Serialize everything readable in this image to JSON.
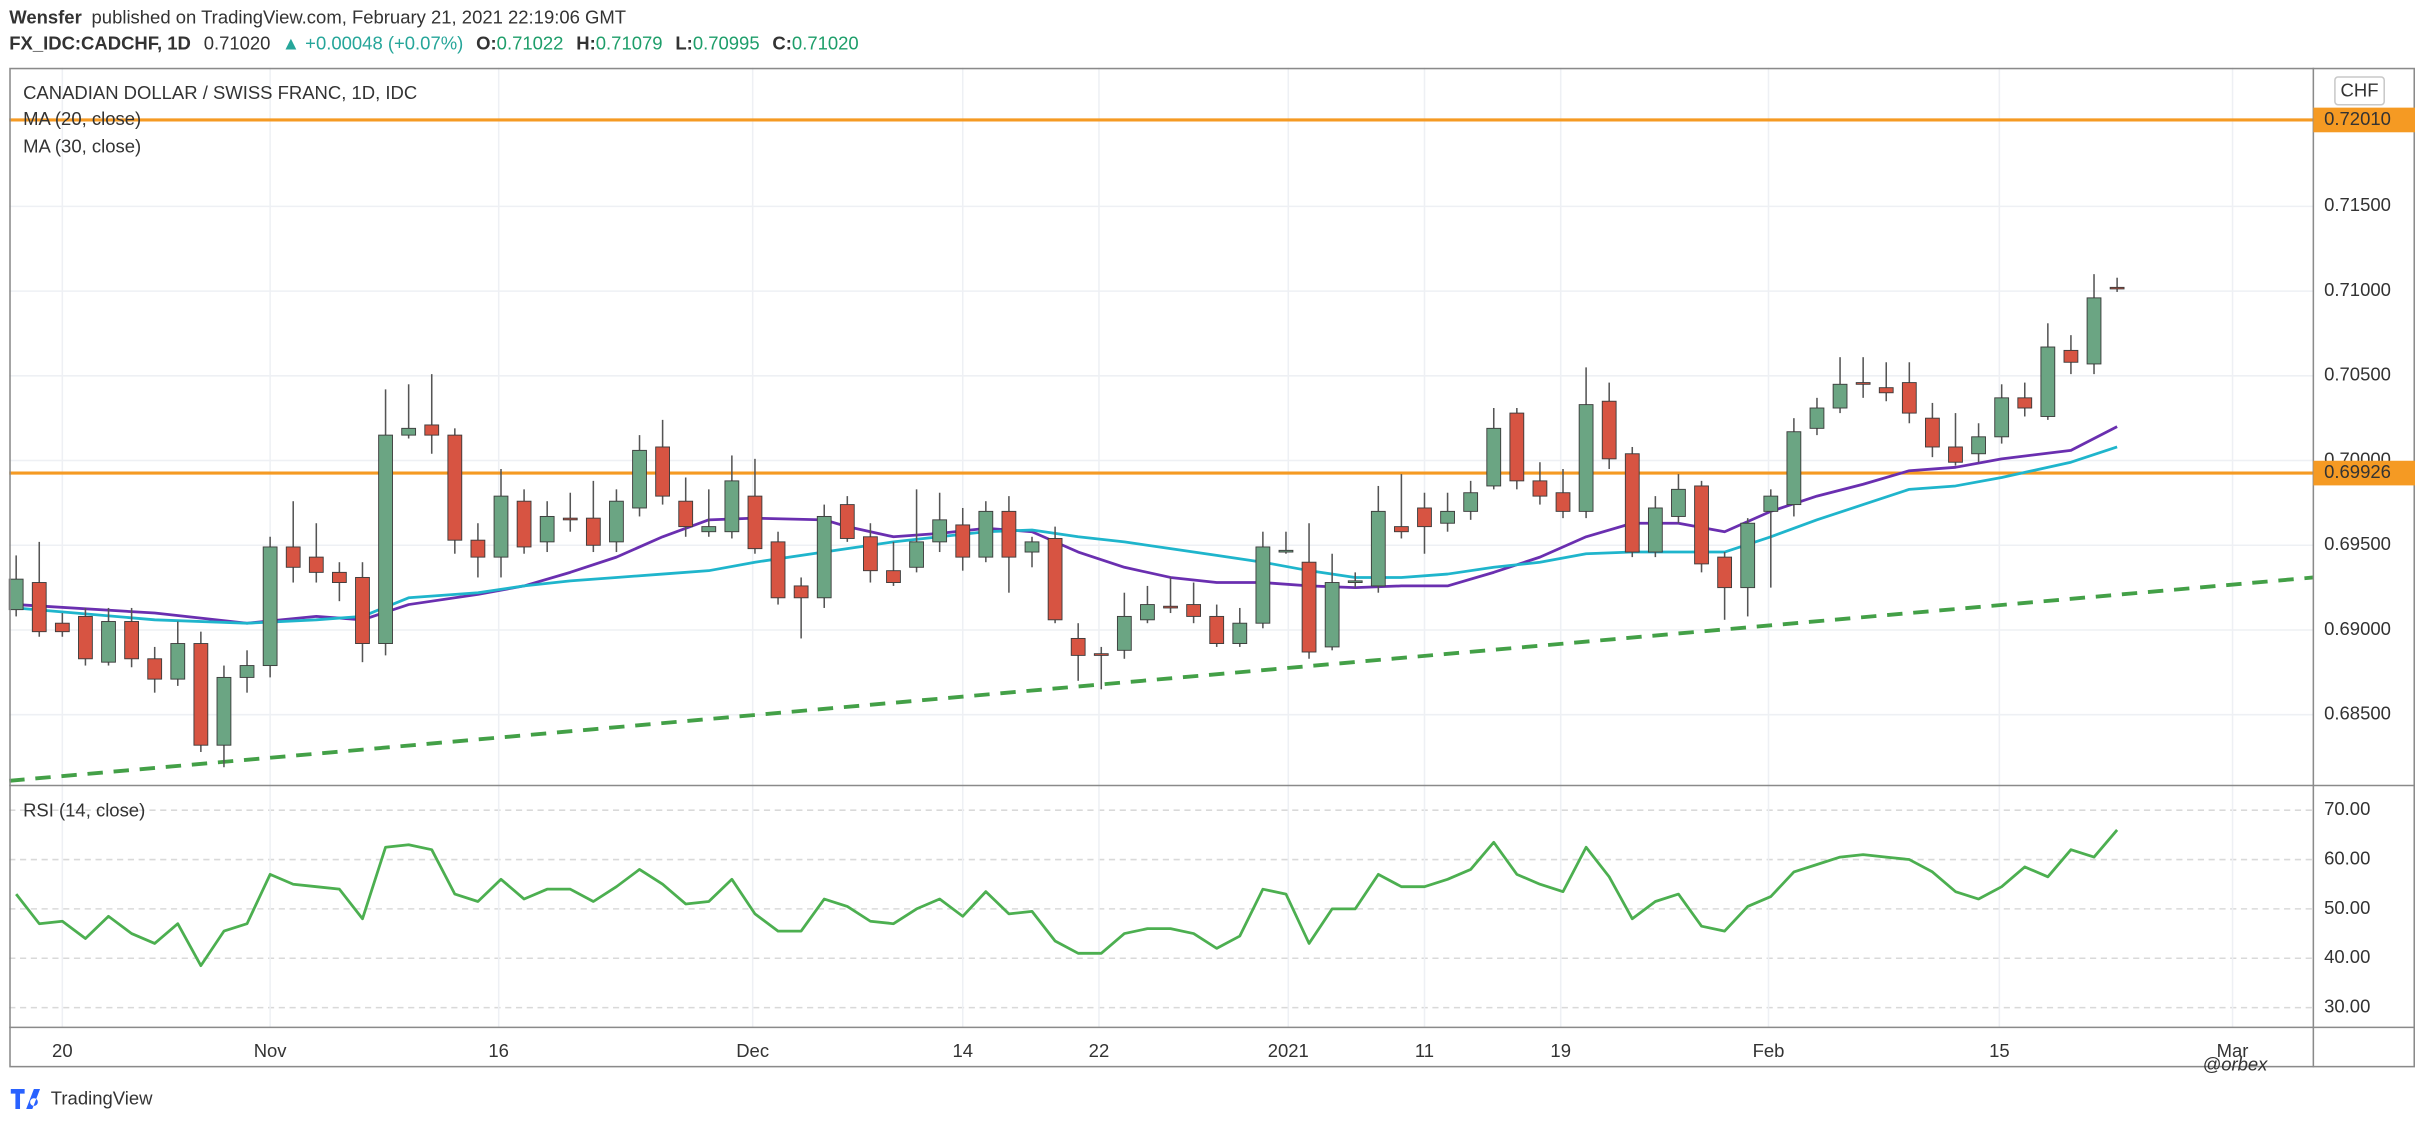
{
  "header": {
    "author": "Wensfer",
    "published": "published on TradingView.com, February 21, 2021 22:19:06 GMT",
    "symbol": "FX_IDC:CADCHF, 1D",
    "last": "0.71020",
    "change": "▲ +0.00048 (+0.07%)",
    "ohlc": [
      {
        "key": "O:",
        "value": "0.71022"
      },
      {
        "key": "H:",
        "value": "0.71079"
      },
      {
        "key": "L:",
        "value": "0.70995"
      },
      {
        "key": "C:",
        "value": "0.71020"
      }
    ]
  },
  "chart_data": [
    {
      "type": "candlestick",
      "title": "CANADIAN DOLLAR / SWISS FRANC, 1D, IDC",
      "currency": "CHF",
      "up_color": "#6ba583",
      "down_color": "#d75442",
      "grid": true,
      "xlim": [
        -0.3,
        99.5
      ],
      "ylim": [
        0.68082,
        0.72318
      ],
      "yticks": [
        {
          "value": 0.685,
          "label": "0.68500"
        },
        {
          "value": 0.69,
          "label": "0.69000"
        },
        {
          "value": 0.695,
          "label": "0.69500"
        },
        {
          "value": 0.7,
          "label": "0.70000"
        },
        {
          "value": 0.705,
          "label": "0.70500"
        },
        {
          "value": 0.71,
          "label": "0.71000"
        },
        {
          "value": 0.715,
          "label": "0.71500"
        }
      ],
      "open": [
        0.6912,
        0.6928,
        0.6904,
        0.6908,
        0.6881,
        0.6905,
        0.6883,
        0.6871,
        0.6892,
        0.6832,
        0.6872,
        0.6879,
        0.6949,
        0.6943,
        0.6934,
        0.6931,
        0.6892,
        0.7015,
        0.7021,
        0.7015,
        0.6953,
        0.6943,
        0.6976,
        0.6952,
        0.6966,
        0.6966,
        0.6952,
        0.6972,
        0.7008,
        0.6976,
        0.6958,
        0.6958,
        0.6979,
        0.6952,
        0.6926,
        0.6919,
        0.6974,
        0.6955,
        0.6935,
        0.6937,
        0.6952,
        0.6962,
        0.6943,
        0.697,
        0.6946,
        0.6954,
        0.6895,
        0.6886,
        0.6888,
        0.6906,
        0.6914,
        0.6915,
        0.6908,
        0.6892,
        0.6904,
        0.6946,
        0.694,
        0.689,
        0.6928,
        0.6926,
        0.6961,
        0.6972,
        0.6963,
        0.697,
        0.6985,
        0.7028,
        0.6988,
        0.6981,
        0.697,
        0.7035,
        0.7004,
        0.6946,
        0.6967,
        0.6985,
        0.6943,
        0.6925,
        0.697,
        0.6974,
        0.7019,
        0.7031,
        0.7046,
        0.7043,
        0.7046,
        0.7025,
        0.7008,
        0.7004,
        0.7014,
        0.7037,
        0.7026,
        0.7065,
        0.7057,
        0.71022
      ],
      "high": [
        0.6944,
        0.6952,
        0.691,
        0.6913,
        0.6913,
        0.6913,
        0.689,
        0.6905,
        0.6899,
        0.6879,
        0.6888,
        0.6955,
        0.6976,
        0.6963,
        0.694,
        0.694,
        0.7042,
        0.7045,
        0.7051,
        0.7019,
        0.6963,
        0.6995,
        0.6983,
        0.6976,
        0.6981,
        0.6988,
        0.6983,
        0.7015,
        0.7024,
        0.699,
        0.6983,
        0.7003,
        0.7001,
        0.6958,
        0.6931,
        0.6974,
        0.6979,
        0.6963,
        0.6952,
        0.6983,
        0.6981,
        0.6972,
        0.6976,
        0.6979,
        0.6955,
        0.6961,
        0.6904,
        0.689,
        0.6922,
        0.6926,
        0.6931,
        0.6928,
        0.6915,
        0.6913,
        0.6958,
        0.6958,
        0.6963,
        0.6945,
        0.6934,
        0.6985,
        0.6992,
        0.6981,
        0.6981,
        0.6988,
        0.7031,
        0.7031,
        0.6999,
        0.6995,
        0.7055,
        0.7046,
        0.7008,
        0.6979,
        0.6992,
        0.6988,
        0.6946,
        0.6966,
        0.6983,
        0.7025,
        0.7037,
        0.7061,
        0.7061,
        0.7058,
        0.7058,
        0.7034,
        0.7028,
        0.7022,
        0.7045,
        0.7046,
        0.7081,
        0.7074,
        0.711,
        0.71079
      ],
      "low": [
        0.6908,
        0.6896,
        0.6896,
        0.6879,
        0.6879,
        0.6878,
        0.6863,
        0.6867,
        0.6828,
        0.6819,
        0.6863,
        0.6872,
        0.6928,
        0.6928,
        0.6917,
        0.6881,
        0.6885,
        0.7013,
        0.7004,
        0.6945,
        0.6931,
        0.6931,
        0.6945,
        0.6946,
        0.6958,
        0.6946,
        0.6946,
        0.6967,
        0.6974,
        0.6955,
        0.6955,
        0.6954,
        0.6945,
        0.6915,
        0.6895,
        0.6913,
        0.6952,
        0.6928,
        0.6926,
        0.6934,
        0.6946,
        0.6935,
        0.694,
        0.6922,
        0.6937,
        0.6904,
        0.687,
        0.6865,
        0.6883,
        0.6904,
        0.691,
        0.6904,
        0.689,
        0.689,
        0.6901,
        0.6945,
        0.6883,
        0.6888,
        0.6925,
        0.6922,
        0.6954,
        0.6945,
        0.6958,
        0.6965,
        0.6983,
        0.6983,
        0.6974,
        0.6966,
        0.6966,
        0.6995,
        0.6943,
        0.6943,
        0.6963,
        0.6934,
        0.6906,
        0.6908,
        0.6925,
        0.6967,
        0.7015,
        0.7028,
        0.7037,
        0.7035,
        0.7022,
        0.7002,
        0.6997,
        0.6999,
        0.701,
        0.7026,
        0.7024,
        0.7051,
        0.7051,
        0.70995
      ],
      "close": [
        0.693,
        0.6899,
        0.6899,
        0.6883,
        0.6905,
        0.6883,
        0.6871,
        0.6892,
        0.6832,
        0.6872,
        0.6879,
        0.6949,
        0.6937,
        0.6934,
        0.6928,
        0.6892,
        0.7015,
        0.7019,
        0.7015,
        0.6953,
        0.6943,
        0.6979,
        0.6949,
        0.6967,
        0.6965,
        0.695,
        0.6976,
        0.7006,
        0.6979,
        0.6961,
        0.6961,
        0.6988,
        0.6948,
        0.6919,
        0.6919,
        0.6967,
        0.6954,
        0.6935,
        0.6928,
        0.6952,
        0.6965,
        0.6943,
        0.697,
        0.6943,
        0.6952,
        0.6906,
        0.6885,
        0.6885,
        0.6908,
        0.6915,
        0.6913,
        0.6908,
        0.6892,
        0.6904,
        0.6949,
        0.6947,
        0.6887,
        0.6928,
        0.6929,
        0.697,
        0.6958,
        0.6961,
        0.697,
        0.6981,
        0.7019,
        0.6988,
        0.6979,
        0.697,
        0.7033,
        0.7001,
        0.6946,
        0.6972,
        0.6983,
        0.6939,
        0.6925,
        0.6963,
        0.6979,
        0.7017,
        0.7031,
        0.7045,
        0.7045,
        0.704,
        0.7028,
        0.7008,
        0.6999,
        0.7014,
        0.7037,
        0.7031,
        0.7067,
        0.7058,
        0.7096,
        0.7102
      ],
      "series": [
        {
          "name": "MA (20, close)",
          "color": "#6a2fb0",
          "x": [
            0,
            6,
            10,
            13,
            15,
            17,
            20,
            22,
            24,
            26,
            28,
            30,
            32,
            35,
            36,
            38,
            40,
            42,
            44,
            46,
            48,
            50,
            52,
            54,
            56,
            58,
            60,
            62,
            64,
            66,
            68,
            70,
            72,
            74,
            76,
            78,
            80,
            82,
            84,
            86,
            89,
            91
          ],
          "values": [
            0.6915,
            0.691,
            0.6904,
            0.6908,
            0.6906,
            0.6915,
            0.6921,
            0.6926,
            0.6934,
            0.6943,
            0.6955,
            0.6965,
            0.6966,
            0.6965,
            0.6961,
            0.6955,
            0.6957,
            0.696,
            0.6958,
            0.6946,
            0.6937,
            0.6931,
            0.6928,
            0.6928,
            0.6926,
            0.6925,
            0.6926,
            0.6926,
            0.6934,
            0.6943,
            0.6955,
            0.6963,
            0.6963,
            0.6958,
            0.697,
            0.6979,
            0.6986,
            0.6994,
            0.6996,
            0.7001,
            0.7006,
            0.702
          ]
        },
        {
          "name": "MA (30, close)",
          "color": "#1fb5cc",
          "x": [
            0,
            6,
            10,
            13,
            15,
            17,
            20,
            22,
            24,
            26,
            28,
            30,
            32,
            35,
            36,
            38,
            40,
            42,
            44,
            46,
            48,
            50,
            52,
            54,
            56,
            58,
            60,
            62,
            64,
            66,
            68,
            70,
            72,
            74,
            76,
            78,
            80,
            82,
            84,
            86,
            89,
            91
          ],
          "values": [
            0.6913,
            0.6906,
            0.6904,
            0.6906,
            0.6908,
            0.6919,
            0.6922,
            0.6926,
            0.6929,
            0.6931,
            0.6933,
            0.6935,
            0.694,
            0.6946,
            0.6948,
            0.6952,
            0.6955,
            0.6958,
            0.6959,
            0.6955,
            0.6952,
            0.6948,
            0.6944,
            0.694,
            0.6935,
            0.6931,
            0.6931,
            0.6933,
            0.6937,
            0.694,
            0.6945,
            0.6946,
            0.6946,
            0.6946,
            0.6955,
            0.6965,
            0.6974,
            0.6983,
            0.6985,
            0.699,
            0.6999,
            0.7008
          ]
        }
      ],
      "trendlines": [
        {
          "color": "#43a047",
          "style": "dashed",
          "x": [
            -0.3,
            99.5
          ],
          "values": [
            0.6811,
            0.6931
          ]
        }
      ],
      "hlines": [
        {
          "value": 0.7201,
          "label": "0.72010",
          "color": "#f59a23"
        },
        {
          "value": 0.69926,
          "label": "0.69926",
          "color": "#f59a23"
        }
      ]
    },
    {
      "type": "line",
      "title": "RSI (14, close)",
      "color": "#4caf50",
      "grid": true,
      "xlim": [
        -0.3,
        99.5
      ],
      "ylim": [
        26,
        75
      ],
      "yticks": [
        {
          "value": 30,
          "label": "30.00"
        },
        {
          "value": 40,
          "label": "40.00"
        },
        {
          "value": 50,
          "label": "50.00"
        },
        {
          "value": 60,
          "label": "60.00"
        },
        {
          "value": 70,
          "label": "70.00"
        }
      ],
      "xticks": [
        {
          "value": 2,
          "label": "20"
        },
        {
          "value": 11,
          "label": "Nov"
        },
        {
          "value": 20.9,
          "label": "16"
        },
        {
          "value": 31.9,
          "label": "Dec"
        },
        {
          "value": 41,
          "label": "14"
        },
        {
          "value": 46.9,
          "label": "22"
        },
        {
          "value": 55.1,
          "label": "2021"
        },
        {
          "value": 61,
          "label": "11"
        },
        {
          "value": 66.9,
          "label": "19"
        },
        {
          "value": 75.9,
          "label": "Feb"
        },
        {
          "value": 85.9,
          "label": "15"
        },
        {
          "value": 96,
          "label": "Mar"
        }
      ],
      "values": [
        53,
        47,
        47.5,
        44,
        48.5,
        45,
        43,
        47,
        38.5,
        45.5,
        47,
        57,
        55,
        54.5,
        54,
        48,
        62.5,
        63,
        62,
        53,
        51.5,
        56,
        52,
        54,
        54,
        51.5,
        54.5,
        58,
        55,
        51,
        51.5,
        56,
        49,
        45.5,
        45.5,
        52,
        50.5,
        47.5,
        47,
        50,
        52,
        48.5,
        53.5,
        49,
        49.5,
        43.5,
        41,
        41,
        45,
        46,
        46,
        45,
        42,
        44.5,
        54,
        53,
        43,
        50,
        50,
        57,
        54.5,
        54.5,
        56,
        58,
        63.5,
        57,
        55,
        53.5,
        62.5,
        56.5,
        48,
        51.5,
        53,
        46.5,
        45.5,
        50.5,
        52.5,
        57.5,
        59,
        60.5,
        61,
        60.5,
        60,
        57.5,
        53.5,
        52,
        54.5,
        58.5,
        56.5,
        62,
        60.5,
        66
      ]
    }
  ],
  "footer": {
    "brand": "TradingView",
    "watermark": "@orbex"
  }
}
